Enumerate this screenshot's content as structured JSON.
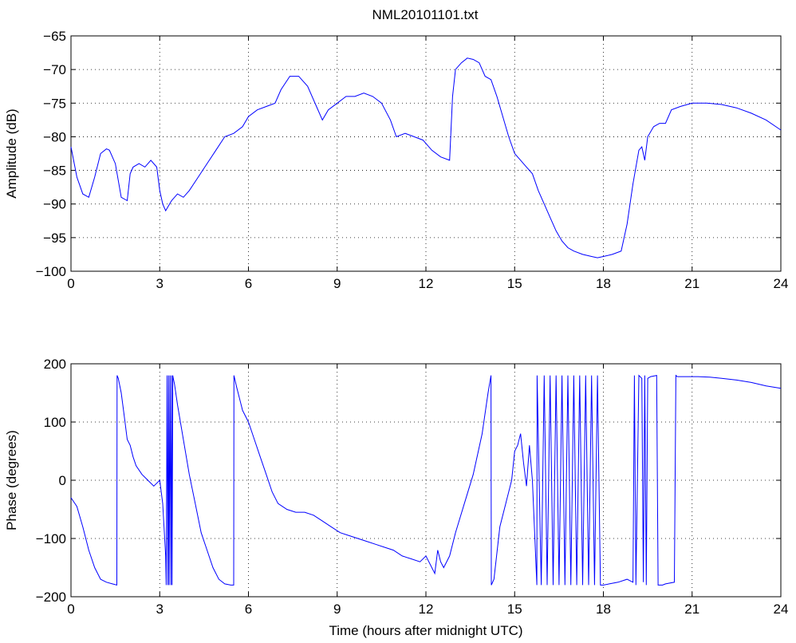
{
  "figure": {
    "title": "NML20101101.txt"
  },
  "chart_data": [
    {
      "type": "line",
      "title": "NML20101101.txt",
      "xlabel": "",
      "ylabel": "Amplitude (dB)",
      "xlim": [
        0,
        24
      ],
      "ylim": [
        -100,
        -65
      ],
      "xticks": [
        "0",
        "3",
        "6",
        "9",
        "12",
        "15",
        "18",
        "21",
        "24"
      ],
      "yticks": [
        "-65",
        "-70",
        "-75",
        "-80",
        "-85",
        "-90",
        "-95",
        "-100"
      ],
      "grid": true,
      "series": [
        {
          "color": "#0000ff",
          "x": [
            0,
            0.2,
            0.4,
            0.6,
            0.8,
            1.0,
            1.2,
            1.3,
            1.5,
            1.7,
            1.9,
            2.0,
            2.1,
            2.3,
            2.5,
            2.7,
            2.9,
            3.0,
            3.1,
            3.2,
            3.4,
            3.6,
            3.8,
            4.0,
            4.3,
            4.6,
            4.9,
            5.2,
            5.5,
            5.8,
            6.0,
            6.3,
            6.6,
            6.9,
            7.1,
            7.4,
            7.7,
            8.0,
            8.3,
            8.5,
            8.7,
            9.0,
            9.3,
            9.6,
            9.9,
            10.2,
            10.5,
            10.8,
            11.0,
            11.3,
            11.6,
            11.9,
            12.2,
            12.5,
            12.8,
            12.9,
            13.0,
            13.2,
            13.4,
            13.6,
            13.8,
            14.0,
            14.2,
            14.4,
            14.6,
            14.8,
            15.0,
            15.2,
            15.4,
            15.6,
            15.8,
            16.0,
            16.2,
            16.4,
            16.6,
            16.8,
            17.0,
            17.3,
            17.6,
            17.8,
            18.0,
            18.3,
            18.6,
            18.8,
            19.0,
            19.2,
            19.3,
            19.4,
            19.5,
            19.7,
            19.9,
            20.1,
            20.3,
            20.6,
            21.0,
            21.5,
            22.0,
            22.5,
            23.0,
            23.5,
            24.0
          ],
          "values": [
            -81.5,
            -86.0,
            -88.5,
            -89.0,
            -86.0,
            -82.5,
            -81.8,
            -82.0,
            -84.0,
            -89.0,
            -89.5,
            -85.5,
            -84.5,
            -84.0,
            -84.5,
            -83.5,
            -84.5,
            -88.0,
            -90.0,
            -91.0,
            -89.5,
            -88.5,
            -89.0,
            -88.0,
            -86.0,
            -84.0,
            -82.0,
            -80.0,
            -79.5,
            -78.5,
            -77.0,
            -76.0,
            -75.5,
            -75.0,
            -73.0,
            -71.0,
            -71.0,
            -72.5,
            -75.5,
            -77.5,
            -76.0,
            -75.0,
            -74.0,
            -74.0,
            -73.5,
            -74.0,
            -75.0,
            -77.5,
            -80.0,
            -79.5,
            -80.0,
            -80.5,
            -82.0,
            -83.0,
            -83.5,
            -74.0,
            -70.0,
            -69.0,
            -68.3,
            -68.5,
            -69.0,
            -71.0,
            -71.5,
            -74.0,
            -77.0,
            -80.0,
            -82.5,
            -83.5,
            -84.5,
            -85.5,
            -88.0,
            -90.0,
            -92.0,
            -94.0,
            -95.5,
            -96.5,
            -97.0,
            -97.5,
            -97.8,
            -98.0,
            -97.8,
            -97.5,
            -97.0,
            -93.0,
            -87.0,
            -82.0,
            -81.5,
            -83.5,
            -80.0,
            -78.5,
            -78.0,
            -78.0,
            -76.0,
            -75.5,
            -75.0,
            -75.0,
            -75.2,
            -75.7,
            -76.5,
            -77.5,
            -79.0
          ]
        }
      ]
    },
    {
      "type": "line",
      "title": "",
      "xlabel": "Time (hours after midnight UTC)",
      "ylabel": "Phase (degrees)",
      "xlim": [
        0,
        24
      ],
      "ylim": [
        -200,
        200
      ],
      "xticks": [
        "0",
        "3",
        "6",
        "9",
        "12",
        "15",
        "18",
        "21",
        "24"
      ],
      "yticks": [
        "200",
        "100",
        "0",
        "-100",
        "-200"
      ],
      "grid": true,
      "series": [
        {
          "color": "#0000ff",
          "x": [
            0,
            0.2,
            0.4,
            0.6,
            0.8,
            1.0,
            1.2,
            1.4,
            1.55,
            1.56,
            1.6,
            1.7,
            1.8,
            1.9,
            2.0,
            2.1,
            2.2,
            2.4,
            2.6,
            2.8,
            3.0,
            3.1,
            3.2,
            3.22,
            3.25,
            3.28,
            3.3,
            3.32,
            3.35,
            3.38,
            3.4,
            3.42,
            3.44,
            3.46,
            3.5,
            3.6,
            3.7,
            3.8,
            4.0,
            4.2,
            4.4,
            4.6,
            4.8,
            5.0,
            5.2,
            5.4,
            5.5,
            5.51,
            5.6,
            5.8,
            6.0,
            6.2,
            6.4,
            6.6,
            6.8,
            7.0,
            7.3,
            7.6,
            7.9,
            8.2,
            8.5,
            8.8,
            9.1,
            9.4,
            9.7,
            10.0,
            10.3,
            10.6,
            10.9,
            11.2,
            11.5,
            11.8,
            12.0,
            12.2,
            12.3,
            12.4,
            12.5,
            12.6,
            12.8,
            13.0,
            13.3,
            13.6,
            13.9,
            14.1,
            14.2,
            14.21,
            14.3,
            14.5,
            14.7,
            14.9,
            15.0,
            15.1,
            15.2,
            15.3,
            15.4,
            15.5,
            15.6,
            15.75,
            15.76,
            15.9,
            16.0,
            16.1,
            16.2,
            16.3,
            16.4,
            16.5,
            16.6,
            16.7,
            16.8,
            16.9,
            17.0,
            17.1,
            17.2,
            17.3,
            17.4,
            17.5,
            17.6,
            17.7,
            17.8,
            17.9,
            18.0,
            18.2,
            18.5,
            18.8,
            19.0,
            19.05,
            19.1,
            19.2,
            19.3,
            19.35,
            19.4,
            19.45,
            19.5,
            19.6,
            19.8,
            19.85,
            20.0,
            20.1,
            20.4,
            20.45,
            20.5,
            20.8,
            21.2,
            21.6,
            22.0,
            22.5,
            23.0,
            23.5,
            24.0
          ],
          "values": [
            -30,
            -45,
            -80,
            -120,
            -150,
            -170,
            -175,
            -178,
            -180,
            180,
            175,
            150,
            110,
            70,
            60,
            40,
            25,
            10,
            0,
            -10,
            0,
            -40,
            -130,
            -180,
            180,
            -180,
            180,
            -180,
            180,
            -180,
            180,
            -180,
            180,
            175,
            165,
            130,
            100,
            70,
            10,
            -40,
            -90,
            -120,
            -150,
            -170,
            -178,
            -180,
            -180,
            180,
            160,
            120,
            100,
            70,
            40,
            10,
            -20,
            -40,
            -50,
            -55,
            -55,
            -60,
            -70,
            -80,
            -90,
            -95,
            -100,
            -105,
            -110,
            -115,
            -120,
            -130,
            -135,
            -140,
            -130,
            -150,
            -160,
            -120,
            -140,
            -150,
            -130,
            -90,
            -40,
            10,
            80,
            150,
            180,
            -180,
            -170,
            -80,
            -40,
            0,
            50,
            60,
            80,
            30,
            -10,
            60,
            0,
            -180,
            180,
            -180,
            180,
            -180,
            180,
            -180,
            180,
            -180,
            180,
            -180,
            180,
            -180,
            180,
            -180,
            180,
            -180,
            180,
            -180,
            180,
            -180,
            180,
            -180,
            -180,
            -178,
            -175,
            -170,
            -175,
            180,
            -180,
            180,
            175,
            -175,
            180,
            -180,
            175,
            178,
            180,
            -180,
            -180,
            -178,
            -175,
            180,
            178,
            178,
            178,
            177,
            175,
            172,
            168,
            162,
            158
          ]
        }
      ]
    }
  ]
}
